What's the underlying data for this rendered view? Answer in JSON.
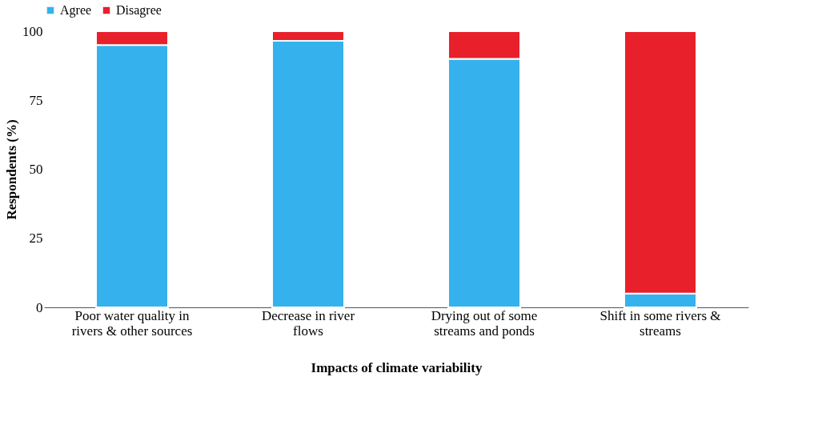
{
  "chart_data": {
    "type": "bar",
    "stacked": true,
    "xlabel": "Impacts of climate variability",
    "ylabel": "Respondents (%)",
    "categories": [
      "Poor water quality in rivers & other sources",
      "Decrease in river flows",
      "Drying out of some streams and ponds",
      "Shift in some rivers & streams"
    ],
    "series": [
      {
        "name": "Agree",
        "color": "#35b2ee",
        "values": [
          95,
          96.5,
          90,
          5
        ]
      },
      {
        "name": "Disagree",
        "color": "#e8202c",
        "values": [
          5,
          3.5,
          10,
          95
        ]
      }
    ],
    "ylim": [
      0,
      100
    ],
    "yticks": [
      0,
      25,
      50,
      75,
      100
    ],
    "grid": false,
    "legend": "top"
  }
}
